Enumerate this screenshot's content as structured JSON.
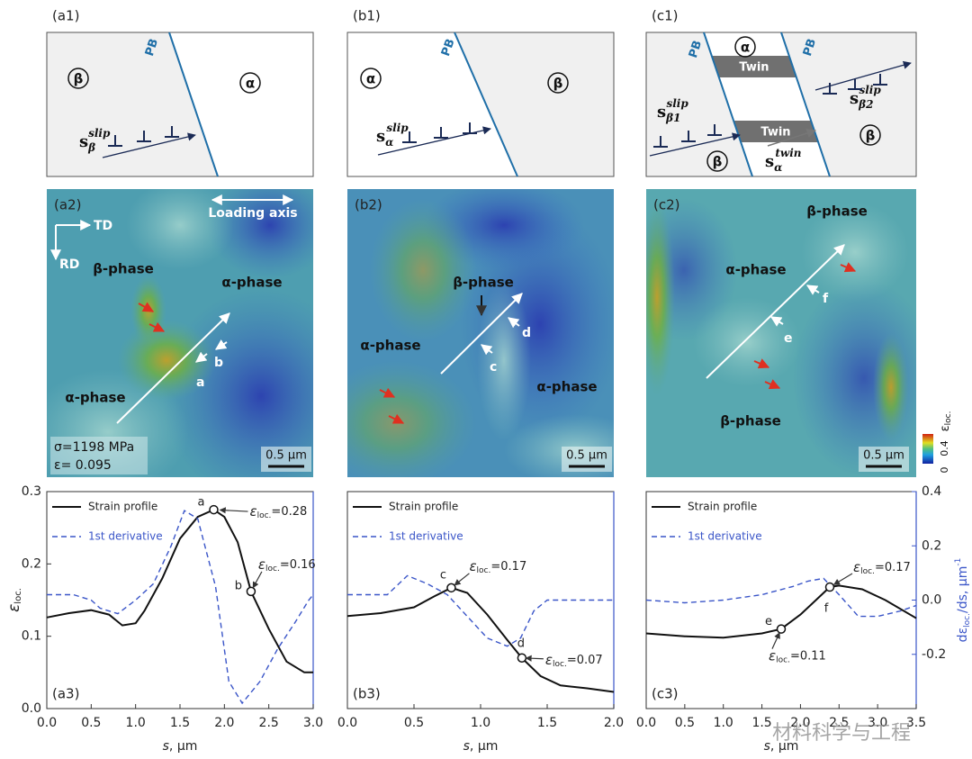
{
  "schematics": {
    "a1": {
      "label": "(a1)",
      "pb": "PB",
      "left": "β",
      "right": "α",
      "slip": {
        "base": "s",
        "sub": "β",
        "sup": "slip"
      }
    },
    "b1": {
      "label": "(b1)",
      "pb": "PB",
      "left": "α",
      "right": "β",
      "slip": {
        "base": "s",
        "sub": "α",
        "sup": "slip"
      }
    },
    "c1": {
      "label": "(c1)",
      "pb": [
        "PB",
        "PB"
      ],
      "middle": "α",
      "twins": [
        "Twin",
        "Twin"
      ],
      "left": "β",
      "right": "β",
      "slip_left": {
        "base": "s",
        "sub": "β1",
        "sup": "slip"
      },
      "slip_right": {
        "base": "s",
        "sub": "β2",
        "sup": "slip"
      },
      "twin": {
        "base": "s",
        "sub": "α",
        "sup": "twin"
      }
    }
  },
  "maps": {
    "a2": {
      "label": "(a2)",
      "td": "TD",
      "rd": "RD",
      "loading": "Loading axis",
      "phases": [
        "β-phase",
        "α-phase",
        "α-phase"
      ],
      "points": [
        "a",
        "b"
      ],
      "stress": "σ=1198 MPa",
      "strain": "ε= 0.095",
      "scale": "0.5 µm"
    },
    "b2": {
      "label": "(b2)",
      "phases": [
        "β-phase",
        "α-phase",
        "α-phase"
      ],
      "points": [
        "c",
        "d"
      ],
      "scale": "0.5 µm"
    },
    "c2": {
      "label": "(c2)",
      "phases": [
        "β-phase",
        "α-phase",
        "β-phase"
      ],
      "points": [
        "e",
        "f"
      ],
      "scale": "0.5 µm",
      "colorbar": {
        "symbol": "ε",
        "sub": "loc.",
        "max": 0.4,
        "min": 0
      }
    }
  },
  "chart_data": [
    {
      "type": "line",
      "label": "(a3)",
      "xlabel": [
        "s",
        ", µm"
      ],
      "ylabel": [
        "ε",
        "loc."
      ],
      "xlim": [
        0,
        3
      ],
      "xticks": [
        {
          "value": 0,
          "label": "0.0"
        },
        0.5,
        {
          "value": 1,
          "label": "1.0"
        },
        1.5,
        {
          "value": 2,
          "label": "2.0"
        },
        2.5,
        {
          "value": 3,
          "label": "3.0"
        }
      ],
      "ylim": [
        0,
        0.3
      ],
      "yticks": [
        {
          "value": 0,
          "label": "0.0"
        },
        0.1,
        0.2,
        0.3
      ],
      "y2lim": [
        -0.4,
        0.4
      ],
      "series": [
        {
          "name": "Strain profile",
          "color": "#111111",
          "x": [
            0,
            0.25,
            0.5,
            0.7,
            0.85,
            1.0,
            1.1,
            1.3,
            1.5,
            1.7,
            1.88,
            2.0,
            2.15,
            2.3,
            2.5,
            2.7,
            2.9,
            3.0
          ],
          "values": [
            0.126,
            0.132,
            0.136,
            0.13,
            0.115,
            0.118,
            0.135,
            0.18,
            0.235,
            0.265,
            0.275,
            0.265,
            0.23,
            0.162,
            0.11,
            0.065,
            0.05,
            0.05
          ]
        },
        {
          "name": "1st derivative",
          "color": "#3a55c8",
          "axis": "y2",
          "x": [
            0,
            0.3,
            0.5,
            0.6,
            0.8,
            1.0,
            1.2,
            1.4,
            1.55,
            1.7,
            1.9,
            2.05,
            2.2,
            2.4,
            2.6,
            2.8,
            2.95,
            3.0
          ],
          "values": [
            0.02,
            0.02,
            0.0,
            -0.03,
            -0.05,
            0.0,
            0.06,
            0.2,
            0.33,
            0.3,
            0.05,
            -0.3,
            -0.38,
            -0.3,
            -0.18,
            -0.08,
            0.0,
            0.02
          ]
        }
      ],
      "annotations": [
        {
          "point": "a",
          "x": 1.88,
          "y": 0.275,
          "symbol": "ε",
          "sub": "loc.",
          "value_label": "=0.28"
        },
        {
          "point": "b",
          "x": 2.3,
          "y": 0.162,
          "symbol": "ε",
          "sub": "loc.",
          "value_label": "=0.16"
        }
      ]
    },
    {
      "type": "line",
      "label": "(b3)",
      "xlabel": [
        "s",
        ", µm"
      ],
      "xlim": [
        0,
        2
      ],
      "xticks": [
        {
          "value": 0,
          "label": "0.0"
        },
        0.5,
        {
          "value": 1,
          "label": "1.0"
        },
        1.5,
        {
          "value": 2,
          "label": "2.0"
        }
      ],
      "ylim": [
        0,
        0.3
      ],
      "y2lim": [
        -0.4,
        0.4
      ],
      "series": [
        {
          "name": "Strain profile",
          "color": "#111111",
          "x": [
            0,
            0.25,
            0.5,
            0.65,
            0.78,
            0.9,
            1.05,
            1.2,
            1.31,
            1.45,
            1.6,
            1.8,
            2.0
          ],
          "values": [
            0.128,
            0.132,
            0.14,
            0.155,
            0.167,
            0.16,
            0.13,
            0.095,
            0.07,
            0.045,
            0.032,
            0.028,
            0.023
          ]
        },
        {
          "name": "1st derivative",
          "color": "#3a55c8",
          "axis": "y2",
          "x": [
            0,
            0.3,
            0.45,
            0.6,
            0.75,
            0.9,
            1.05,
            1.2,
            1.3,
            1.4,
            1.5,
            1.7,
            2.0
          ],
          "values": [
            0.02,
            0.02,
            0.09,
            0.06,
            0.02,
            -0.06,
            -0.14,
            -0.17,
            -0.14,
            -0.04,
            0.0,
            0.0,
            0.0
          ]
        }
      ],
      "annotations": [
        {
          "point": "c",
          "x": 0.78,
          "y": 0.167,
          "symbol": "ε",
          "sub": "loc.",
          "value_label": "=0.17"
        },
        {
          "point": "d",
          "x": 1.31,
          "y": 0.07,
          "symbol": "ε",
          "sub": "loc.",
          "value_label": "=0.07"
        }
      ]
    },
    {
      "type": "line",
      "label": "(c3)",
      "xlabel": [
        "s",
        ", µm"
      ],
      "y2label": [
        "dε",
        "loc.",
        "/ds, µm",
        "-1"
      ],
      "xlim": [
        0,
        3.5
      ],
      "xticks": [
        {
          "value": 0,
          "label": "0.0"
        },
        0.5,
        {
          "value": 1,
          "label": "1.0"
        },
        1.5,
        {
          "value": 2,
          "label": "2.0"
        },
        2.5,
        {
          "value": 3,
          "label": "3.0"
        },
        3.5
      ],
      "ylim": [
        0,
        0.3
      ],
      "y2lim": [
        -0.4,
        0.4
      ],
      "y2ticks": [
        -0.2,
        {
          "value": 0,
          "label": "0.0"
        },
        0.2,
        0.4
      ],
      "series": [
        {
          "name": "Strain profile",
          "color": "#111111",
          "x": [
            0,
            0.5,
            1.0,
            1.5,
            1.75,
            2.0,
            2.2,
            2.38,
            2.5,
            2.8,
            3.1,
            3.5
          ],
          "values": [
            0.104,
            0.1,
            0.098,
            0.104,
            0.11,
            0.13,
            0.15,
            0.168,
            0.17,
            0.165,
            0.15,
            0.125
          ]
        },
        {
          "name": "1st derivative",
          "color": "#3a55c8",
          "axis": "y2",
          "x": [
            0,
            0.5,
            1.0,
            1.5,
            1.9,
            2.1,
            2.3,
            2.5,
            2.75,
            3.0,
            3.3,
            3.5
          ],
          "values": [
            0.0,
            -0.01,
            0.0,
            0.02,
            0.05,
            0.07,
            0.08,
            0.02,
            -0.06,
            -0.06,
            -0.04,
            -0.02
          ]
        }
      ],
      "annotations": [
        {
          "point": "e",
          "x": 1.75,
          "y": 0.11,
          "symbol": "ε",
          "sub": "loc.",
          "value_label": "=0.11"
        },
        {
          "point": "f",
          "x": 2.38,
          "y": 0.168,
          "symbol": "ε",
          "sub": "loc.",
          "value_label": "=0.17"
        }
      ]
    }
  ],
  "watermark": "材料科学与工程"
}
